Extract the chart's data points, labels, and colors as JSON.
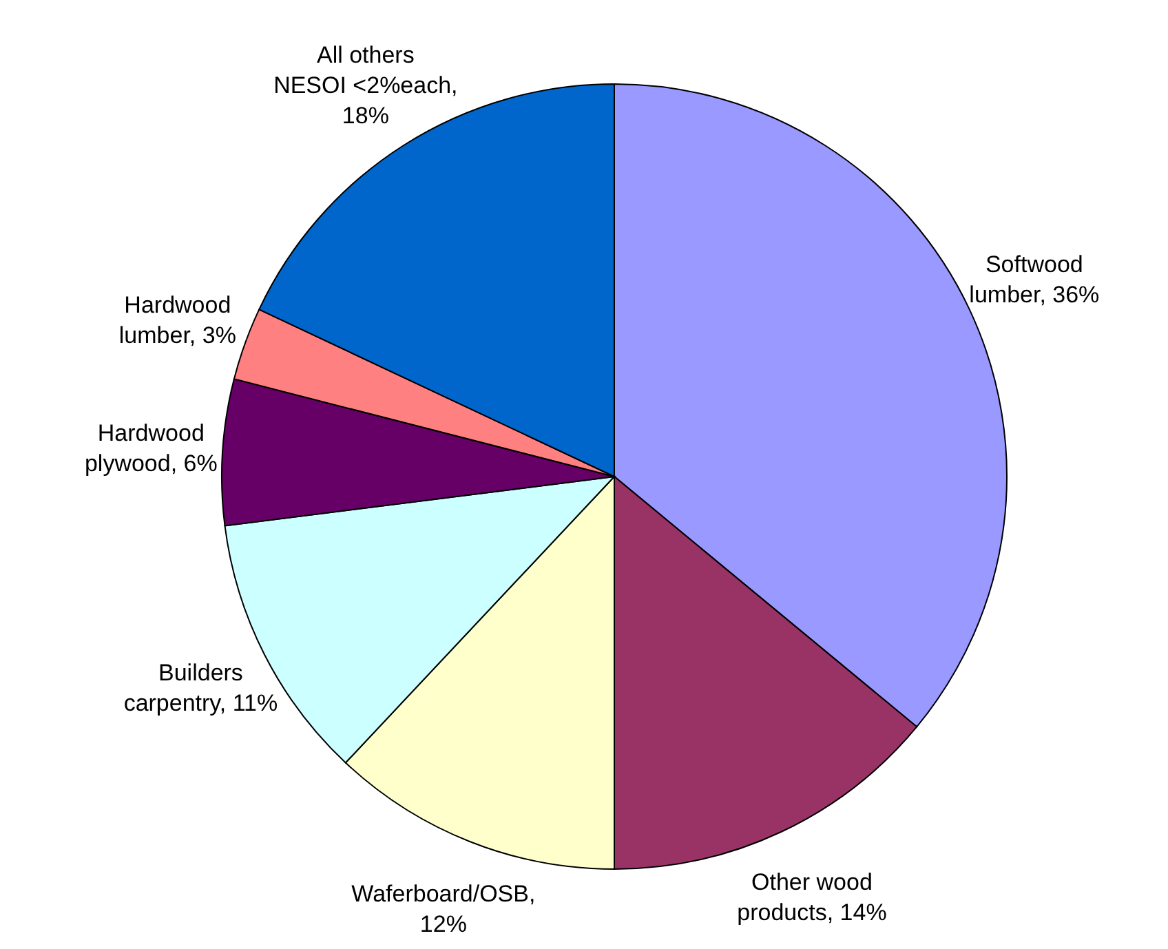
{
  "chart_data": {
    "type": "pie",
    "categories": [
      "Softwood lumber, 36%",
      "Other wood products, 14%",
      "Waferboard/OSB, 12%",
      "Builders carpentry, 11%",
      "Hardwood plywood, 6%",
      "Hardwood lumber, 3%",
      "All others NESOI <2%each, 18%"
    ],
    "values": [
      36,
      14,
      12,
      11,
      6,
      3,
      18
    ],
    "colors": [
      "#9999ff",
      "#993366",
      "#ffffcc",
      "#ccffff",
      "#660066",
      "#ff8080",
      "#0066cc"
    ],
    "legend": false
  }
}
